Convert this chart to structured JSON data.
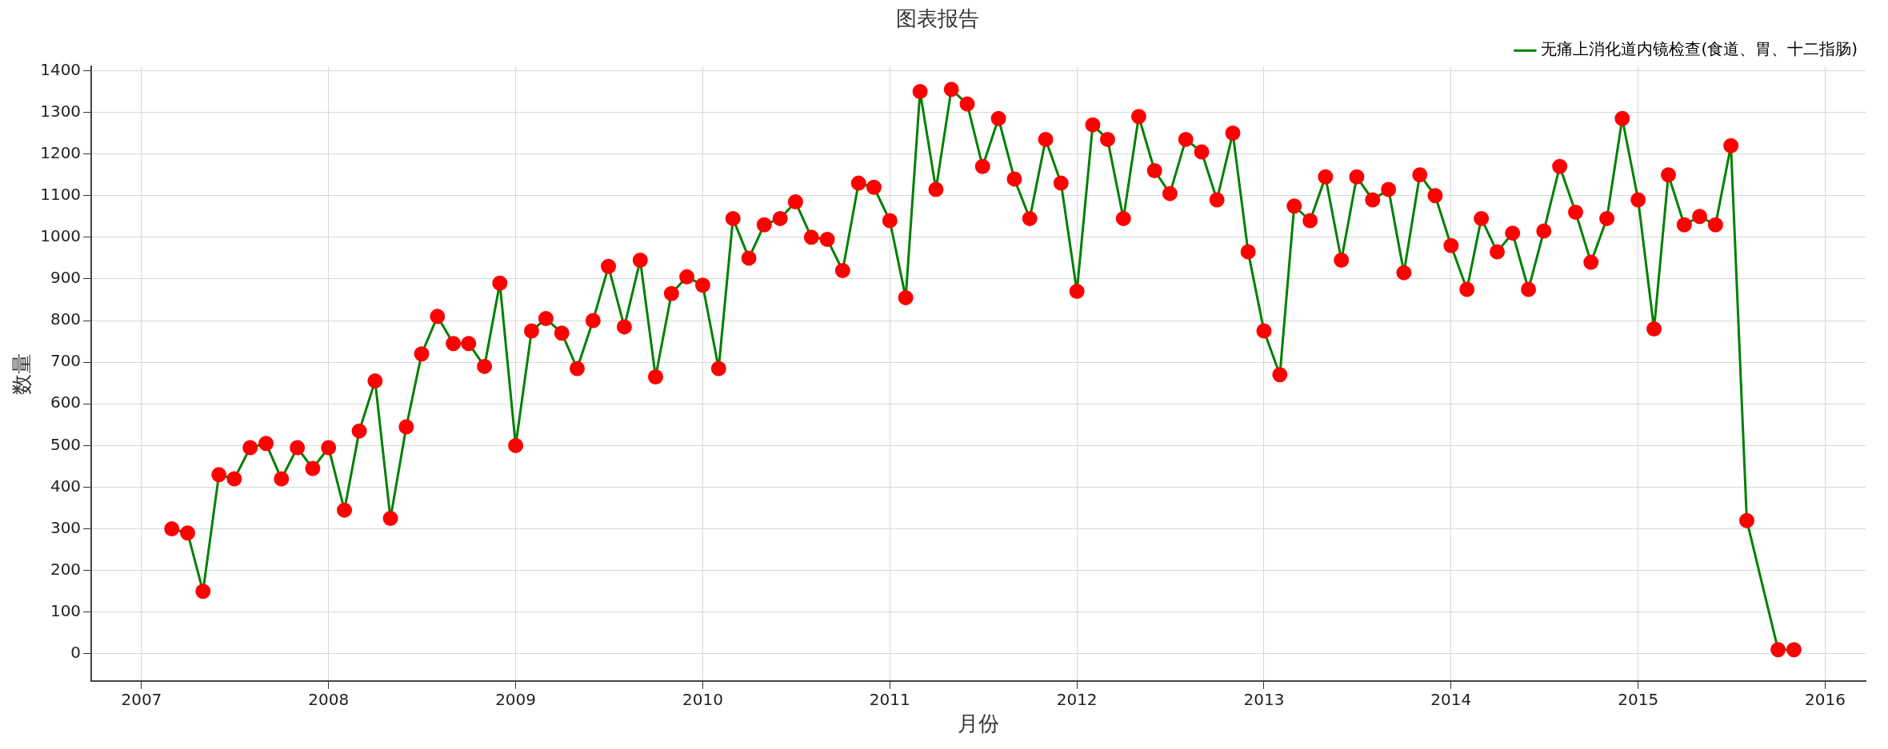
{
  "chart_data": {
    "type": "line",
    "title": "图表报告",
    "xlabel": "月份",
    "ylabel": "数量",
    "x": [
      "2007-03",
      "2007-04",
      "2007-05",
      "2007-06",
      "2007-07",
      "2007-08",
      "2007-09",
      "2007-10",
      "2007-11",
      "2007-12",
      "2008-01",
      "2008-02",
      "2008-03",
      "2008-04",
      "2008-05",
      "2008-06",
      "2008-07",
      "2008-08",
      "2008-09",
      "2008-10",
      "2008-11",
      "2008-12",
      "2009-01",
      "2009-02",
      "2009-03",
      "2009-04",
      "2009-05",
      "2009-06",
      "2009-07",
      "2009-08",
      "2009-09",
      "2009-10",
      "2009-11",
      "2009-12",
      "2010-01",
      "2010-02",
      "2010-03",
      "2010-04",
      "2010-05",
      "2010-06",
      "2010-07",
      "2010-08",
      "2010-09",
      "2010-10",
      "2010-11",
      "2010-12",
      "2011-01",
      "2011-02",
      "2011-03",
      "2011-04",
      "2011-05",
      "2011-06",
      "2011-07",
      "2011-08",
      "2011-09",
      "2011-10",
      "2011-11",
      "2011-12",
      "2012-01",
      "2012-02",
      "2012-03",
      "2012-04",
      "2012-05",
      "2012-06",
      "2012-07",
      "2012-08",
      "2012-09",
      "2012-10",
      "2012-11",
      "2012-12",
      "2013-01",
      "2013-02",
      "2013-03",
      "2013-04",
      "2013-05",
      "2013-06",
      "2013-07",
      "2013-08",
      "2013-09",
      "2013-10",
      "2013-11",
      "2013-12",
      "2014-01",
      "2014-02",
      "2014-03",
      "2014-04",
      "2014-05",
      "2014-06",
      "2014-07",
      "2014-08",
      "2014-09",
      "2014-10",
      "2014-11",
      "2014-12",
      "2015-01",
      "2015-02",
      "2015-03",
      "2015-04",
      "2015-05",
      "2015-06",
      "2015-07",
      "2015-08",
      "2015-10",
      "2015-11"
    ],
    "series": [
      {
        "name": "无痛上消化道内镜检查(食道、胃、十二指肠)",
        "color": "#008000",
        "values": [
          300,
          290,
          150,
          430,
          420,
          495,
          505,
          420,
          495,
          445,
          495,
          345,
          535,
          655,
          325,
          545,
          720,
          810,
          745,
          745,
          690,
          890,
          500,
          775,
          805,
          770,
          685,
          800,
          930,
          785,
          945,
          665,
          865,
          905,
          885,
          685,
          1045,
          950,
          1030,
          1045,
          1085,
          1000,
          995,
          920,
          1130,
          1120,
          1040,
          855,
          1350,
          1115,
          1355,
          1320,
          1170,
          1285,
          1140,
          1045,
          1235,
          1130,
          870,
          1270,
          1235,
          1045,
          1290,
          1160,
          1105,
          1235,
          1205,
          1090,
          1250,
          965,
          775,
          670,
          1075,
          1040,
          1145,
          945,
          1145,
          1090,
          1115,
          915,
          1150,
          1100,
          980,
          875,
          1045,
          965,
          1010,
          875,
          1015,
          1170,
          1060,
          940,
          1045,
          1285,
          1090,
          780,
          1150,
          1030,
          1050,
          1030,
          1220,
          320,
          10,
          10
        ],
        "colors": [
          "#ff0000",
          "#ff0000",
          "#ff0000",
          "#ff0000",
          "#ff0000",
          "#ff0000",
          "#ff0000",
          "#ff0000",
          "#ff0000",
          "#ff0000",
          "#ff0000",
          "#ff0000",
          "#ff0000",
          "#ff0000",
          "#ff0000",
          "#ff0000",
          "#ff0000",
          "#ff0000",
          "#ff0000",
          "#ff0000",
          "#ff0000",
          "#ff0000",
          "#ff0000",
          "#ff0000",
          "#ff0000",
          "#ff0000",
          "#ff0000",
          "#ff0000",
          "#ff0000",
          "#ff0000",
          "#ff0000",
          "#ff0000",
          "#ff0000",
          "#ff0000",
          "#ff0000",
          "#ff0000",
          "#ff0000",
          "#ff0000",
          "#ff0000",
          "#ff0000",
          "#ff0000",
          "#ff0000",
          "#ff0000",
          "#ff0000",
          "#ff0000",
          "#ff0000",
          "#ff0000",
          "#ff0000",
          "#ff0000",
          "#ff0000",
          "#ff0000",
          "#ff0000",
          "#ff0000",
          "#ff0000",
          "#ff0000",
          "#ff0000",
          "#ff0000",
          "#ff0000",
          "#ff0000",
          "#ff0000",
          "#ff0000",
          "#ff0000",
          "#ff0000",
          "#ff0000",
          "#ff0000",
          "#ff0000",
          "#ff0000",
          "#ff0000",
          "#ff0000",
          "#ff0000",
          "#ff0000",
          "#ff0000",
          "#ff0000",
          "#ff0000",
          "#ff0000",
          "#ff0000",
          "#ff0000",
          "#ff0000",
          "#ff0000",
          "#ff0000",
          "#ff0000",
          "#ff0000",
          "#ff0000",
          "#ff0000",
          "#ff0000",
          "#ff0000",
          "#ff0000",
          "#ff0000",
          "#ff0000",
          "#ff0000",
          "#ff0000",
          "#ff0000",
          "#ff0000",
          "#ff0000",
          "#ff0000",
          "#ff0000",
          "#ff0000",
          "#ff0000",
          "#ff0000",
          "#ff0000",
          "#ff0000",
          "#ff0000",
          "#ff0000",
          "#ff0000"
        ]
      }
    ],
    "xlim": [
      "2006-09-25",
      "2016-03-20"
    ],
    "xticks": [
      {
        "value": "2007",
        "label": "2007"
      },
      {
        "value": "2008",
        "label": "2008"
      },
      {
        "value": "2009",
        "label": "2009"
      },
      {
        "value": "2010",
        "label": "2010"
      },
      {
        "value": "2011",
        "label": "2011"
      },
      {
        "value": "2012",
        "label": "2012"
      },
      {
        "value": "2013",
        "label": "2013"
      },
      {
        "value": "2014",
        "label": "2014"
      },
      {
        "value": "2015",
        "label": "2015"
      },
      {
        "value": "2016",
        "label": "2016"
      }
    ],
    "ylim": [
      -65,
      1410
    ],
    "yticks": [
      0,
      100,
      200,
      300,
      400,
      500,
      600,
      700,
      800,
      900,
      1000,
      1100,
      1200,
      1300,
      1400
    ],
    "grid": true,
    "legend": "top right",
    "marker": "circle",
    "line_style": "solid"
  }
}
